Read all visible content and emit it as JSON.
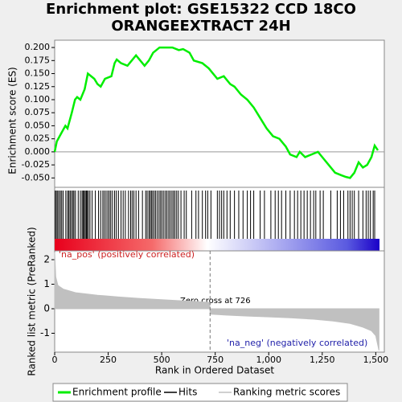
{
  "chart_data": {
    "type": "gsea",
    "title": [
      "Enrichment plot: GSE15322 CCD 18CO",
      "ORANGEEXTRACT 24H"
    ],
    "ylabel": "Enrichment score (ES)",
    "ylabel2": "Ranked list metric (PreRanked)",
    "xlabel": "Rank in Ordered Dataset",
    "xlim": [
      0,
      1540
    ],
    "xticks": [
      0,
      250,
      500,
      750,
      {
        "value": 1000,
        "label": "1,000"
      },
      {
        "value": 1250,
        "label": "1,250"
      },
      {
        "value": 1500,
        "label": "1,500"
      }
    ],
    "ylim": [
      -0.068,
      0.214
    ],
    "yticks": [
      {
        "value": 0.2,
        "label": "0.200"
      },
      {
        "value": 0.175,
        "label": "0.175"
      },
      {
        "value": 0.15,
        "label": "0.150"
      },
      {
        "value": 0.125,
        "label": "0.125"
      },
      {
        "value": 0.1,
        "label": "0.100"
      },
      {
        "value": 0.075,
        "label": "0.075"
      },
      {
        "value": 0.05,
        "label": "0.050"
      },
      {
        "value": 0.025,
        "label": "0.025"
      },
      {
        "value": 0,
        "label": "0.000"
      },
      {
        "value": -0.025,
        "label": "-0.025"
      },
      {
        "value": -0.05,
        "label": "-0.050"
      }
    ],
    "y2lim": [
      -1.77,
      2.36
    ],
    "y2ticks": [
      2,
      1,
      0,
      -1
    ],
    "es": {
      "name": "Enrichment profile",
      "color": "#00ee00",
      "x": [
        0,
        10,
        30,
        50,
        60,
        80,
        95,
        105,
        120,
        140,
        155,
        170,
        185,
        200,
        215,
        235,
        265,
        280,
        290,
        310,
        340,
        360,
        380,
        400,
        420,
        440,
        460,
        475,
        490,
        520,
        550,
        580,
        600,
        630,
        650,
        690,
        720,
        740,
        760,
        790,
        820,
        840,
        870,
        900,
        930,
        960,
        990,
        1020,
        1050,
        1080,
        1100,
        1130,
        1145,
        1170,
        1200,
        1230,
        1250,
        1280,
        1310,
        1340,
        1360,
        1380,
        1400,
        1420,
        1440,
        1460,
        1480,
        1495,
        1510
      ],
      "values": [
        0,
        0.02,
        0.035,
        0.05,
        0.045,
        0.075,
        0.1,
        0.105,
        0.1,
        0.12,
        0.15,
        0.145,
        0.14,
        0.13,
        0.125,
        0.14,
        0.145,
        0.17,
        0.177,
        0.17,
        0.165,
        0.175,
        0.185,
        0.175,
        0.165,
        0.175,
        0.19,
        0.195,
        0.2,
        0.2,
        0.2,
        0.195,
        0.197,
        0.19,
        0.175,
        0.17,
        0.16,
        0.15,
        0.14,
        0.145,
        0.13,
        0.125,
        0.11,
        0.1,
        0.085,
        0.065,
        0.045,
        0.03,
        0.025,
        0.01,
        -0.005,
        -0.01,
        0,
        -0.01,
        -0.005,
        0,
        -0.01,
        -0.025,
        -0.04,
        -0.045,
        -0.048,
        -0.05,
        -0.04,
        -0.02,
        -0.03,
        -0.025,
        -0.01,
        0.012,
        0.003
      ]
    },
    "hits": {
      "name": "Hits",
      "color": "#000000",
      "x": [
        3,
        8,
        14,
        20,
        27,
        33,
        40,
        52,
        60,
        66,
        72,
        78,
        85,
        90,
        97,
        110,
        120,
        128,
        133,
        138,
        143,
        148,
        152,
        158,
        165,
        175,
        190,
        205,
        215,
        225,
        232,
        240,
        248,
        255,
        262,
        270,
        280,
        288,
        298,
        310,
        320,
        330,
        345,
        355,
        362,
        370,
        380,
        392,
        410,
        425,
        432,
        440,
        446,
        452,
        458,
        465,
        472,
        480,
        488,
        495,
        502,
        510,
        518,
        525,
        533,
        540,
        548,
        555,
        562,
        570,
        578,
        590,
        605,
        615,
        640,
        660,
        672,
        690,
        705,
        715,
        730,
        760,
        770,
        780,
        790,
        805,
        820,
        840,
        860,
        880,
        900,
        915,
        930,
        960,
        980,
        1010,
        1030,
        1045,
        1060,
        1080,
        1100,
        1120,
        1135,
        1150,
        1165,
        1180,
        1195,
        1210,
        1220,
        1240,
        1255,
        1290,
        1320,
        1335,
        1350,
        1370,
        1380,
        1390,
        1400,
        1420,
        1440,
        1455,
        1465,
        1475,
        1488,
        1495
      ]
    },
    "metric": {
      "name": "Ranking metric scores",
      "color": "#c0c0c0",
      "x": [
        0,
        5,
        15,
        40,
        100,
        200,
        300,
        400,
        500,
        600,
        700,
        725,
        726,
        800,
        900,
        1000,
        1100,
        1200,
        1300,
        1380,
        1440,
        1480,
        1500,
        1510,
        1515
      ],
      "values": [
        2.3,
        1.3,
        0.95,
        0.8,
        0.65,
        0.55,
        0.48,
        0.42,
        0.37,
        0.32,
        0.27,
        0.25,
        -0.22,
        -0.26,
        -0.3,
        -0.33,
        -0.37,
        -0.42,
        -0.5,
        -0.6,
        -0.75,
        -0.9,
        -1.1,
        -1.5,
        -1.7
      ]
    },
    "zero_cross": 726,
    "annotations": [
      "'na_pos' (positively correlated)",
      "'na_neg' (negatively correlated)",
      "Zero cross at 726"
    ]
  }
}
